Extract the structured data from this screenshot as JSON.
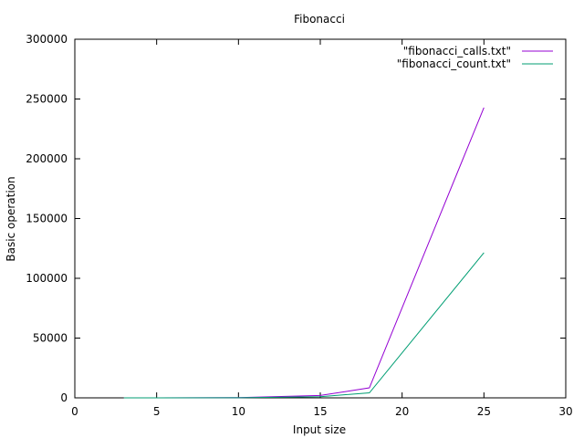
{
  "chart_data": {
    "type": "line",
    "title": "Fibonacci",
    "xlabel": "Input size",
    "ylabel": "Basic operation",
    "xlim": [
      0,
      30
    ],
    "ylim": [
      0,
      300000
    ],
    "xticks": [
      0,
      5,
      10,
      15,
      20,
      25,
      30
    ],
    "yticks": [
      0,
      50000,
      100000,
      150000,
      200000,
      250000,
      300000
    ],
    "grid": false,
    "legend_position": "top-right",
    "series": [
      {
        "name": "\"fibonacci_calls.txt\"",
        "color": "#9400d3",
        "x": [
          3,
          5,
          10,
          15,
          18,
          25
        ],
        "y": [
          5,
          15,
          177,
          1973,
          8361,
          242785
        ]
      },
      {
        "name": "\"fibonacci_count.txt\"",
        "color": "#009e73",
        "x": [
          3,
          5,
          10,
          15,
          18,
          25
        ],
        "y": [
          3,
          8,
          89,
          987,
          4181,
          121393
        ]
      }
    ]
  }
}
